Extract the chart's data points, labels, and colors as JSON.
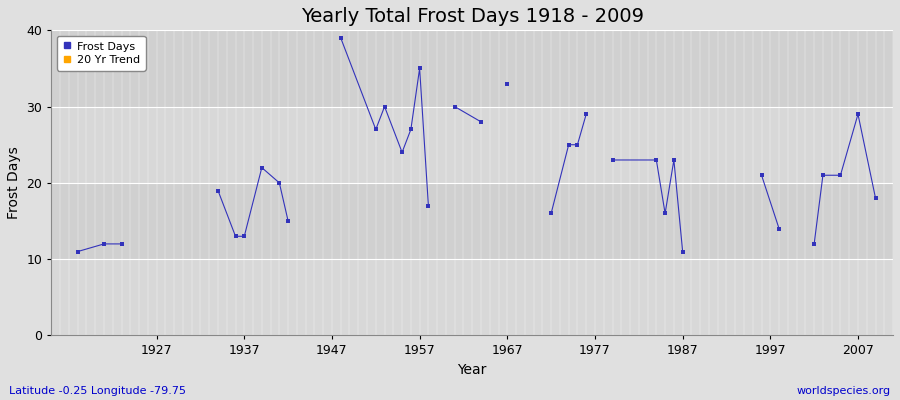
{
  "title": "Yearly Total Frost Days 1918 - 2009",
  "xlabel": "Year",
  "ylabel": "Frost Days",
  "xlim": [
    1915,
    2011
  ],
  "ylim": [
    0,
    40
  ],
  "xticks": [
    1927,
    1937,
    1947,
    1957,
    1967,
    1977,
    1987,
    1997,
    2007
  ],
  "yticks": [
    0,
    10,
    20,
    30,
    40
  ],
  "background_color": "#e0e0e0",
  "plot_bg_color_light": "#dcdcdc",
  "plot_bg_color_dark": "#d0d0d0",
  "line_color": "#3333bb",
  "marker_color": "#3333bb",
  "trend_color": "#ffa500",
  "connected_segments": [
    [
      [
        1918,
        11
      ],
      [
        1921,
        12
      ],
      [
        1923,
        12
      ]
    ],
    [
      [
        1934,
        19
      ],
      [
        1936,
        13
      ],
      [
        1937,
        13
      ],
      [
        1939,
        22
      ],
      [
        1941,
        20
      ],
      [
        1942,
        15
      ]
    ],
    [
      [
        1948,
        39
      ],
      [
        1952,
        27
      ],
      [
        1953,
        30
      ],
      [
        1955,
        24
      ],
      [
        1956,
        27
      ],
      [
        1957,
        35
      ],
      [
        1958,
        17
      ]
    ],
    [
      [
        1961,
        30
      ],
      [
        1964,
        28
      ]
    ],
    [
      [
        1967,
        33
      ]
    ],
    [
      [
        1972,
        16
      ],
      [
        1974,
        25
      ],
      [
        1975,
        25
      ],
      [
        1976,
        29
      ]
    ],
    [
      [
        1979,
        23
      ],
      [
        1984,
        23
      ],
      [
        1985,
        16
      ],
      [
        1986,
        23
      ],
      [
        1987,
        11
      ]
    ],
    [
      [
        1996,
        21
      ],
      [
        1998,
        14
      ]
    ],
    [
      [
        2002,
        12
      ],
      [
        2003,
        21
      ],
      [
        2005,
        21
      ],
      [
        2007,
        29
      ],
      [
        2009,
        18
      ]
    ]
  ],
  "footnote_left": "Latitude -0.25 Longitude -79.75",
  "footnote_right": "worldspecies.org",
  "title_fontsize": 14,
  "axis_label_fontsize": 10,
  "tick_fontsize": 9,
  "footnote_fontsize": 8
}
